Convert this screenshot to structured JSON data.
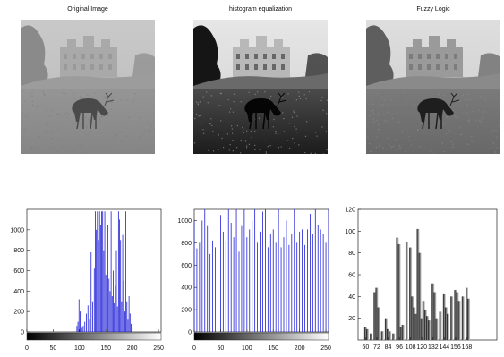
{
  "images": [
    {
      "title": "Original Image",
      "style": "hazy"
    },
    {
      "title": "histogram equalization",
      "style": "contrast"
    },
    {
      "title": "Fuzzy Logic",
      "style": "enhanced"
    }
  ],
  "chart_data": [
    {
      "type": "bar",
      "style": "stem",
      "color": "#1f1fd8",
      "xlim": [
        0,
        255
      ],
      "ylim": [
        0,
        1200
      ],
      "x_ticks": [
        0,
        50,
        100,
        150,
        200,
        250
      ],
      "y_ticks": [
        0,
        200,
        400,
        600,
        800,
        1000
      ],
      "grid": false,
      "colorbar": "gray",
      "x": [
        95,
        97,
        99,
        101,
        103,
        105,
        107,
        110,
        113,
        116,
        119,
        122,
        125,
        128,
        130,
        132,
        134,
        136,
        138,
        140,
        142,
        144,
        146,
        148,
        150,
        152,
        154,
        156,
        158,
        160,
        162,
        164,
        166,
        168,
        170,
        172,
        174,
        176,
        178,
        180,
        182,
        184,
        186,
        188,
        190,
        192,
        194,
        196,
        198,
        200
      ],
      "values": [
        60,
        100,
        320,
        200,
        80,
        40,
        60,
        100,
        180,
        260,
        120,
        780,
        300,
        620,
        1180,
        1000,
        1180,
        900,
        1180,
        1050,
        1180,
        1180,
        800,
        1180,
        560,
        1180,
        1050,
        520,
        400,
        1180,
        350,
        600,
        280,
        450,
        800,
        250,
        1180,
        1100,
        900,
        300,
        950,
        500,
        200,
        1180,
        300,
        120,
        350,
        180,
        80,
        40
      ]
    },
    {
      "type": "bar",
      "style": "stem",
      "color": "#1f1fd8",
      "xlim": [
        0,
        255
      ],
      "ylim": [
        0,
        1100
      ],
      "x_ticks": [
        0,
        50,
        100,
        150,
        200,
        250
      ],
      "y_ticks": [
        0,
        200,
        400,
        600,
        800,
        1000
      ],
      "grid": false,
      "colorbar": "gray",
      "x": [
        0,
        5,
        10,
        15,
        20,
        25,
        30,
        35,
        40,
        45,
        50,
        55,
        60,
        65,
        70,
        75,
        80,
        85,
        90,
        95,
        100,
        105,
        110,
        115,
        120,
        125,
        130,
        135,
        140,
        145,
        150,
        155,
        160,
        165,
        170,
        175,
        180,
        185,
        190,
        195,
        200,
        205,
        210,
        215,
        220,
        225,
        230,
        235,
        240,
        245,
        250,
        255
      ],
      "values": [
        1000,
        750,
        800,
        1000,
        1100,
        950,
        700,
        820,
        760,
        1100,
        1050,
        900,
        820,
        1100,
        980,
        850,
        1100,
        720,
        950,
        1100,
        850,
        920,
        1000,
        1100,
        800,
        900,
        1080,
        1100,
        760,
        880,
        920,
        800,
        1100,
        760,
        850,
        1000,
        780,
        880,
        1100,
        800,
        900,
        920,
        780,
        920,
        1060,
        880,
        1100,
        960,
        920,
        880,
        800,
        1100
      ]
    },
    {
      "type": "bar",
      "style": "gradient",
      "xlim": [
        52,
        200
      ],
      "ylim": [
        0,
        120
      ],
      "x_ticks": [
        60,
        72,
        84,
        96,
        108,
        120,
        132,
        144,
        156,
        168
      ],
      "y_ticks": [
        20,
        40,
        60,
        80,
        100,
        120
      ],
      "grid": false,
      "x": [
        60,
        62,
        66,
        70,
        72,
        74,
        78,
        82,
        84,
        86,
        90,
        94,
        96,
        98,
        100,
        104,
        108,
        110,
        112,
        114,
        116,
        118,
        120,
        122,
        124,
        126,
        128,
        132,
        134,
        136,
        140,
        144,
        146,
        148,
        152,
        156,
        158,
        160,
        164,
        168,
        170
      ],
      "values": [
        12,
        10,
        6,
        44,
        48,
        30,
        8,
        20,
        10,
        8,
        6,
        94,
        88,
        12,
        14,
        90,
        85,
        40,
        30,
        24,
        102,
        80,
        20,
        36,
        28,
        22,
        18,
        52,
        44,
        20,
        26,
        42,
        30,
        24,
        40,
        46,
        44,
        36,
        40,
        48,
        38
      ]
    }
  ]
}
